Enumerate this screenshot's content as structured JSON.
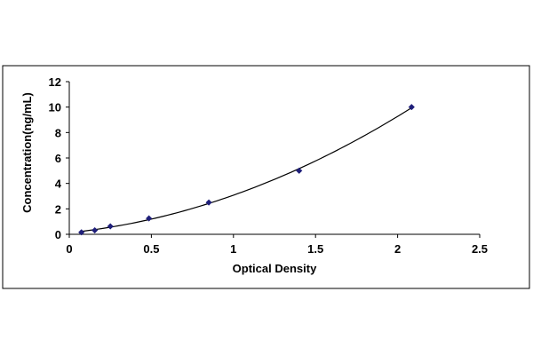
{
  "chart_data": {
    "type": "scatter",
    "xlabel": "Optical Density",
    "ylabel": "Concentration(ng/mL)",
    "xlim": [
      0,
      2.5
    ],
    "ylim": [
      0,
      12
    ],
    "x_ticks": [
      "0",
      "0.5",
      "1",
      "1.5",
      "2",
      "2.5"
    ],
    "y_ticks": [
      "0",
      "2",
      "4",
      "6",
      "8",
      "10",
      "12"
    ],
    "grid": false,
    "legend": "none",
    "series": [
      {
        "x": [
          0.074,
          0.155,
          0.25,
          0.485,
          0.85,
          1.4,
          2.085
        ],
        "y": [
          0.156,
          0.312,
          0.625,
          1.25,
          2.5,
          5,
          10
        ],
        "trendline": "polynomial"
      }
    ],
    "colors": {
      "marker": "#1f1f7a",
      "line": "#000000",
      "frame": "#000000"
    }
  }
}
